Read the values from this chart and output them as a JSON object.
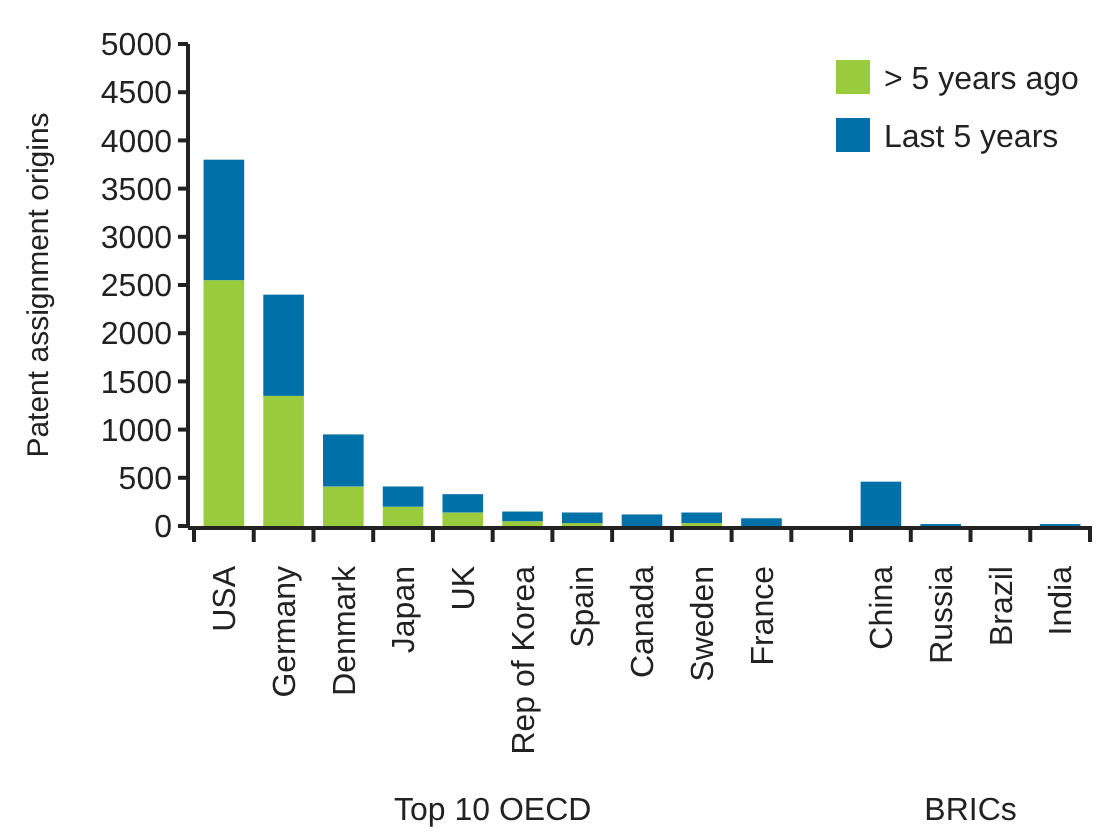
{
  "chart_data": {
    "type": "bar",
    "stacked": true,
    "ylabel": "Patent assignment origins",
    "categories": [
      "USA",
      "Germany",
      "Denmark",
      "Japan",
      "UK",
      "Rep of Korea",
      "Spain",
      "Canada",
      "Sweden",
      "France",
      null,
      "China",
      "Russia",
      "Brazil",
      "India"
    ],
    "series": [
      {
        "name": "> 5 years ago",
        "color": "#9acb3c",
        "values": [
          2550,
          1350,
          410,
          200,
          140,
          50,
          30,
          null,
          30,
          null,
          null,
          null,
          null,
          null,
          null
        ]
      },
      {
        "name": "Last 5 years",
        "color": "#0070a8",
        "values": [
          1250,
          1050,
          540,
          210,
          190,
          100,
          110,
          120,
          110,
          80,
          null,
          460,
          20,
          null,
          20
        ]
      }
    ],
    "ylim": [
      0,
      5000
    ],
    "yticks": [
      0,
      500,
      1000,
      1500,
      2000,
      2500,
      3000,
      3500,
      4000,
      4500,
      5000
    ],
    "legend": "top right",
    "grid": false,
    "annotations": [
      {
        "text": "Top 10 OECD"
      },
      {
        "text": "BRICs"
      }
    ]
  }
}
